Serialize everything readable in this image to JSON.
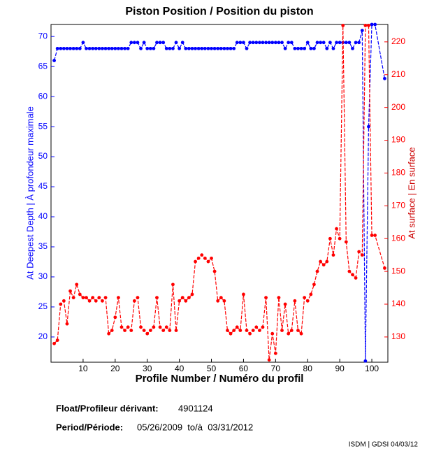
{
  "chart_data": {
    "type": "line",
    "title": "Piston Position / Position du piston",
    "xlabel": "Profile Number / Numéro du profil",
    "ylabel": "At Deepest Depth | À profondeur maximale",
    "y2label": "At surface | En surface",
    "xlim": [
      0,
      105
    ],
    "xticks": [
      10,
      20,
      30,
      40,
      50,
      60,
      70,
      80,
      90,
      100
    ],
    "ylim": [
      15.8,
      72
    ],
    "yticks": [
      20,
      25,
      30,
      35,
      40,
      45,
      50,
      55,
      60,
      65,
      70
    ],
    "y2lim": [
      122.3,
      225.3
    ],
    "y2ticks": [
      130,
      140,
      150,
      160,
      170,
      180,
      190,
      200,
      210,
      220
    ],
    "x": [
      1,
      2,
      3,
      4,
      5,
      6,
      7,
      8,
      9,
      10,
      11,
      12,
      13,
      14,
      15,
      16,
      17,
      18,
      19,
      20,
      21,
      22,
      23,
      24,
      25,
      26,
      27,
      28,
      29,
      30,
      31,
      32,
      33,
      34,
      35,
      36,
      37,
      38,
      39,
      40,
      41,
      42,
      43,
      44,
      45,
      46,
      47,
      48,
      49,
      50,
      51,
      52,
      53,
      54,
      55,
      56,
      57,
      58,
      59,
      60,
      61,
      62,
      63,
      64,
      65,
      66,
      67,
      68,
      69,
      70,
      71,
      72,
      73,
      74,
      75,
      76,
      77,
      78,
      79,
      80,
      81,
      82,
      83,
      84,
      85,
      86,
      87,
      88,
      89,
      90,
      91,
      92,
      93,
      94,
      95,
      96,
      97,
      98,
      99,
      100,
      101,
      104
    ],
    "series": [
      {
        "name": "At Deepest Depth",
        "color": "#0000ff",
        "axis": "y",
        "values": [
          66,
          68,
          68,
          68,
          68,
          68,
          68,
          68,
          68,
          69,
          68,
          68,
          68,
          68,
          68,
          68,
          68,
          68,
          68,
          68,
          68,
          68,
          68,
          68,
          69,
          69,
          69,
          68,
          69,
          68,
          68,
          68,
          69,
          69,
          69,
          68,
          68,
          68,
          69,
          68,
          69,
          68,
          68,
          68,
          68,
          68,
          68,
          68,
          68,
          68,
          68,
          68,
          68,
          68,
          68,
          68,
          68,
          69,
          69,
          69,
          68,
          69,
          69,
          69,
          69,
          69,
          69,
          69,
          69,
          69,
          69,
          69,
          68,
          69,
          69,
          68,
          68,
          68,
          68,
          69,
          68,
          68,
          69,
          69,
          69,
          68,
          69,
          68,
          69,
          69,
          69,
          69,
          69,
          68,
          69,
          69,
          71,
          16,
          55,
          72,
          72,
          63
        ]
      },
      {
        "name": "At surface",
        "color": "#ff0000",
        "axis": "y2",
        "values": [
          128,
          129,
          140,
          141,
          134,
          144,
          142,
          146,
          143,
          142,
          142,
          141,
          142,
          141,
          142,
          141,
          142,
          131,
          132,
          136,
          142,
          133,
          132,
          133,
          132,
          141,
          142,
          133,
          132,
          131,
          132,
          133,
          142,
          133,
          132,
          133,
          132,
          146,
          132,
          141,
          142,
          141,
          142,
          143,
          153,
          154,
          155,
          154,
          153,
          154,
          150,
          141,
          142,
          141,
          132,
          131,
          132,
          133,
          132,
          143,
          132,
          131,
          132,
          133,
          132,
          133,
          142,
          123,
          131,
          125,
          142,
          132,
          140,
          131,
          132,
          141,
          132,
          131,
          142,
          141,
          143,
          146,
          150,
          153,
          152,
          153,
          160,
          155,
          163,
          160,
          225,
          159,
          150,
          149,
          148,
          156,
          155,
          225,
          225,
          161,
          161,
          151
        ]
      }
    ]
  },
  "footer": {
    "float_label": "Float/Profileur dérivant:",
    "float_id": "4901124",
    "period_label": "Period/Période:",
    "period": "05/26/2009  to/à  03/31/2012",
    "credit": "ISDM | GDSI 04/03/12"
  }
}
